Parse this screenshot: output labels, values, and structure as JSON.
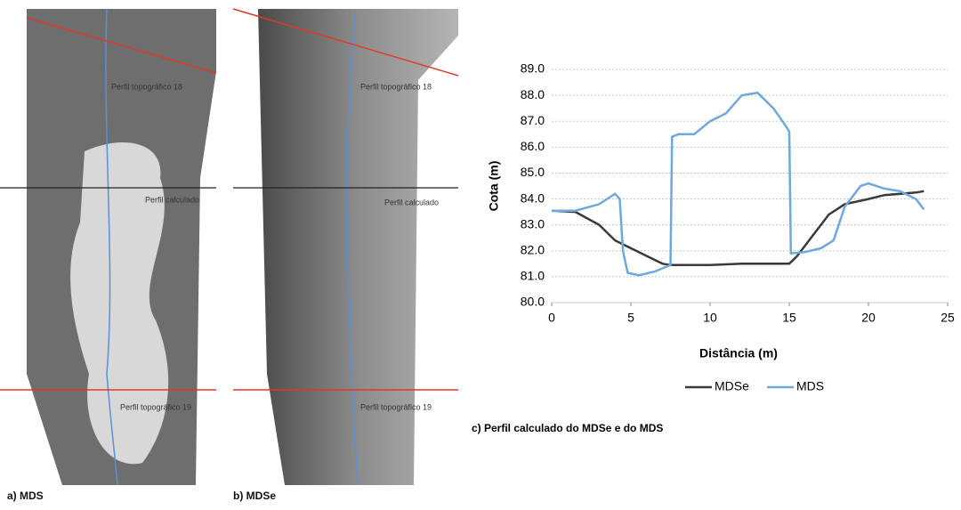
{
  "panels": [
    {
      "label": "a) MDS",
      "annotations": [
        "Perfil topográfico 18",
        "Perfil calculado",
        "Perfil topográfico 19"
      ]
    },
    {
      "label": "b) MDSe",
      "annotations": [
        "Perfil topográfico 18",
        "Perfil calculado",
        "Perfil topográfico 19"
      ]
    }
  ],
  "chart_data": {
    "type": "line",
    "caption": "c) Perfil calculado do MDSe e do MDS",
    "x_label": "Distância (m)",
    "y_label": "Cota (m)",
    "xlim": [
      0,
      25
    ],
    "xticks": [
      0,
      5,
      10,
      15,
      20,
      25
    ],
    "ylim": [
      80,
      89
    ],
    "yticks": [
      {
        "value": 80,
        "label": "80.0"
      },
      {
        "value": 81,
        "label": "81.0"
      },
      {
        "value": 82,
        "label": "82.0"
      },
      {
        "value": 83,
        "label": "83.0"
      },
      {
        "value": 84,
        "label": "84.0"
      },
      {
        "value": 85,
        "label": "85.0"
      },
      {
        "value": 86,
        "label": "86.0"
      },
      {
        "value": 87,
        "label": "87.0"
      },
      {
        "value": 88,
        "label": "88.0"
      },
      {
        "value": 89,
        "label": "89.0"
      }
    ],
    "grid": true,
    "legend": "bottom",
    "series": [
      {
        "name": "MDSe",
        "color": "#3a3a3a",
        "x": [
          0,
          1.5,
          3,
          4,
          5,
          6,
          7,
          7.5,
          10,
          12,
          15,
          15.5,
          16.5,
          17.5,
          18.5,
          20,
          21,
          23,
          23.5
        ],
        "values": [
          83.55,
          83.5,
          83.0,
          82.4,
          82.1,
          81.8,
          81.5,
          81.45,
          81.45,
          81.5,
          81.5,
          81.8,
          82.6,
          83.4,
          83.8,
          84.0,
          84.15,
          84.25,
          84.3
        ]
      },
      {
        "name": "MDS",
        "color": "#6fa8dc",
        "x": [
          0,
          1.5,
          3,
          4,
          4.3,
          4.5,
          4.8,
          5.5,
          6.5,
          7.5,
          7.6,
          8,
          9,
          10,
          11,
          12,
          13,
          14,
          14.8,
          15,
          15.1,
          16,
          17,
          17.8,
          18.5,
          19.5,
          20,
          21,
          22,
          23,
          23.5
        ],
        "values": [
          83.55,
          83.55,
          83.8,
          84.2,
          84.0,
          82.0,
          81.15,
          81.05,
          81.2,
          81.45,
          86.4,
          86.5,
          86.5,
          87.0,
          87.3,
          88.0,
          88.1,
          87.5,
          86.8,
          86.6,
          81.9,
          81.95,
          82.1,
          82.4,
          83.7,
          84.5,
          84.6,
          84.4,
          84.3,
          84.0,
          83.6
        ]
      }
    ]
  }
}
